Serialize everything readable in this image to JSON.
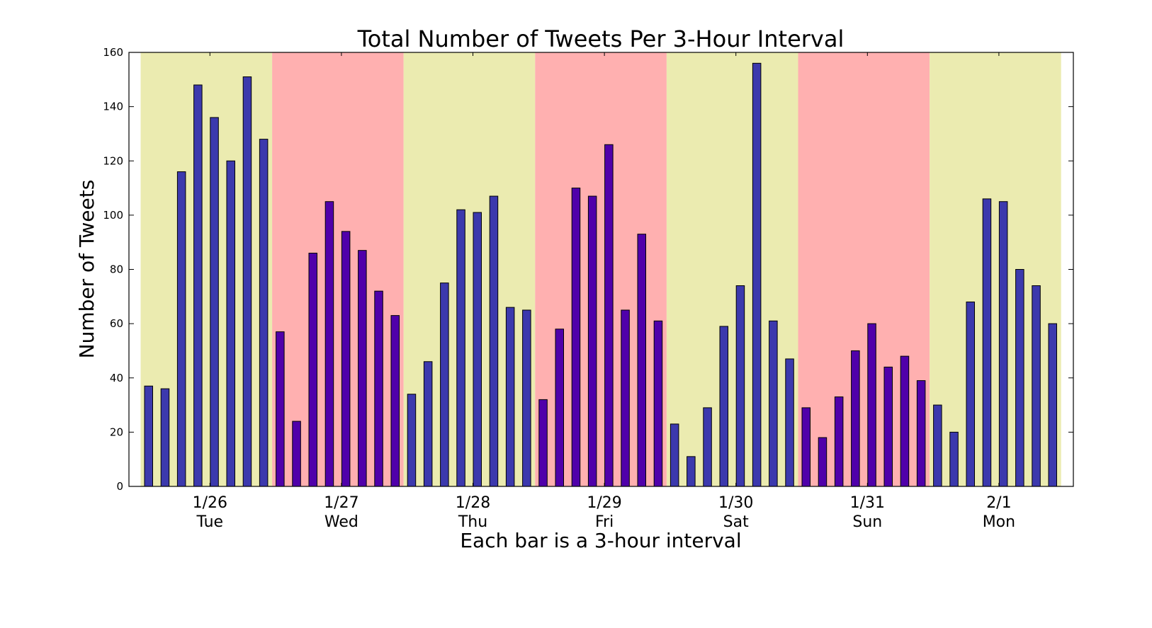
{
  "chart_data": {
    "type": "bar",
    "title": "Total Number of Tweets Per 3-Hour Interval",
    "xlabel": "Each bar is a 3-hour interval",
    "ylabel": "Number of Tweets",
    "ylim": [
      0,
      160
    ],
    "yticks": [
      0,
      20,
      40,
      60,
      80,
      100,
      120,
      140,
      160
    ],
    "grid": false,
    "days": [
      {
        "date": "1/26",
        "weekday": "Tue",
        "band_color": "#ebebb0",
        "bar_color": "#3c39ad",
        "values": [
          37,
          36,
          116,
          148,
          136,
          120,
          151,
          128
        ]
      },
      {
        "date": "1/27",
        "weekday": "Wed",
        "band_color": "#ffb0b0",
        "bar_color": "#5000aa",
        "values": [
          57,
          24,
          86,
          105,
          94,
          87,
          72,
          63
        ]
      },
      {
        "date": "1/28",
        "weekday": "Thu",
        "band_color": "#ebebb0",
        "bar_color": "#3c39ad",
        "values": [
          34,
          46,
          75,
          102,
          101,
          107,
          66,
          65
        ]
      },
      {
        "date": "1/29",
        "weekday": "Fri",
        "band_color": "#ffb0b0",
        "bar_color": "#5000aa",
        "values": [
          32,
          58,
          110,
          107,
          126,
          65,
          93,
          61
        ]
      },
      {
        "date": "1/30",
        "weekday": "Sat",
        "band_color": "#ebebb0",
        "bar_color": "#3c39ad",
        "values": [
          23,
          11,
          29,
          59,
          74,
          156,
          61,
          47
        ]
      },
      {
        "date": "1/31",
        "weekday": "Sun",
        "band_color": "#ffb0b0",
        "bar_color": "#5000aa",
        "values": [
          29,
          18,
          33,
          50,
          60,
          44,
          48,
          39
        ]
      },
      {
        "date": "2/1",
        "weekday": "Mon",
        "band_color": "#ebebb0",
        "bar_color": "#3c39ad",
        "values": [
          30,
          20,
          68,
          106,
          105,
          80,
          74,
          60
        ]
      }
    ]
  }
}
